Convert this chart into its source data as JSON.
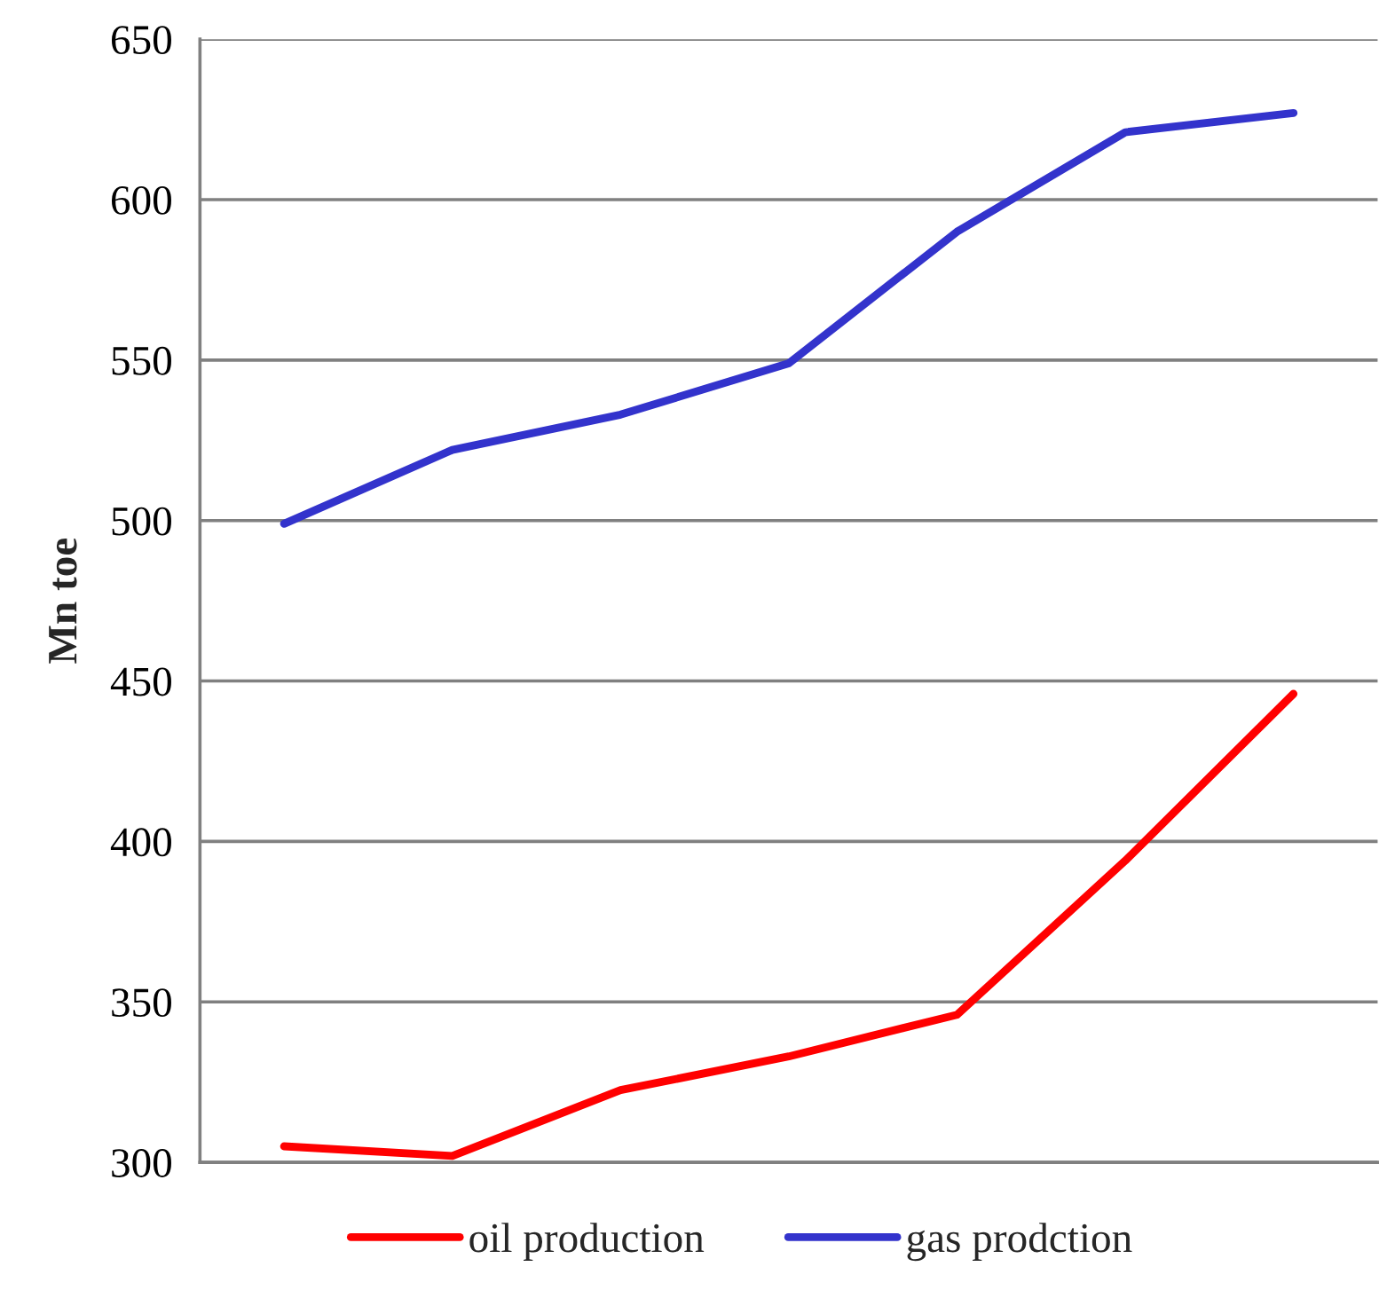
{
  "chart_data": {
    "type": "line",
    "ylabel": "Mn toe",
    "categories": [
      null,
      null,
      null,
      null,
      null,
      null,
      null
    ],
    "series": [
      {
        "name": "oil production",
        "color": "#ff0000",
        "values": [
          305,
          302,
          322.5,
          333,
          346,
          394,
          446
        ]
      },
      {
        "name": "gas prodction",
        "color": "#3333cc",
        "values": [
          499,
          522,
          533,
          549,
          590,
          621,
          627
        ]
      }
    ],
    "ylim": [
      300,
      650
    ],
    "yticks": [
      300,
      350,
      400,
      450,
      500,
      550,
      600,
      650
    ],
    "grid": "y",
    "legend": "bottom",
    "tick_labels": "y",
    "marker": "none",
    "line_style": "solid"
  }
}
